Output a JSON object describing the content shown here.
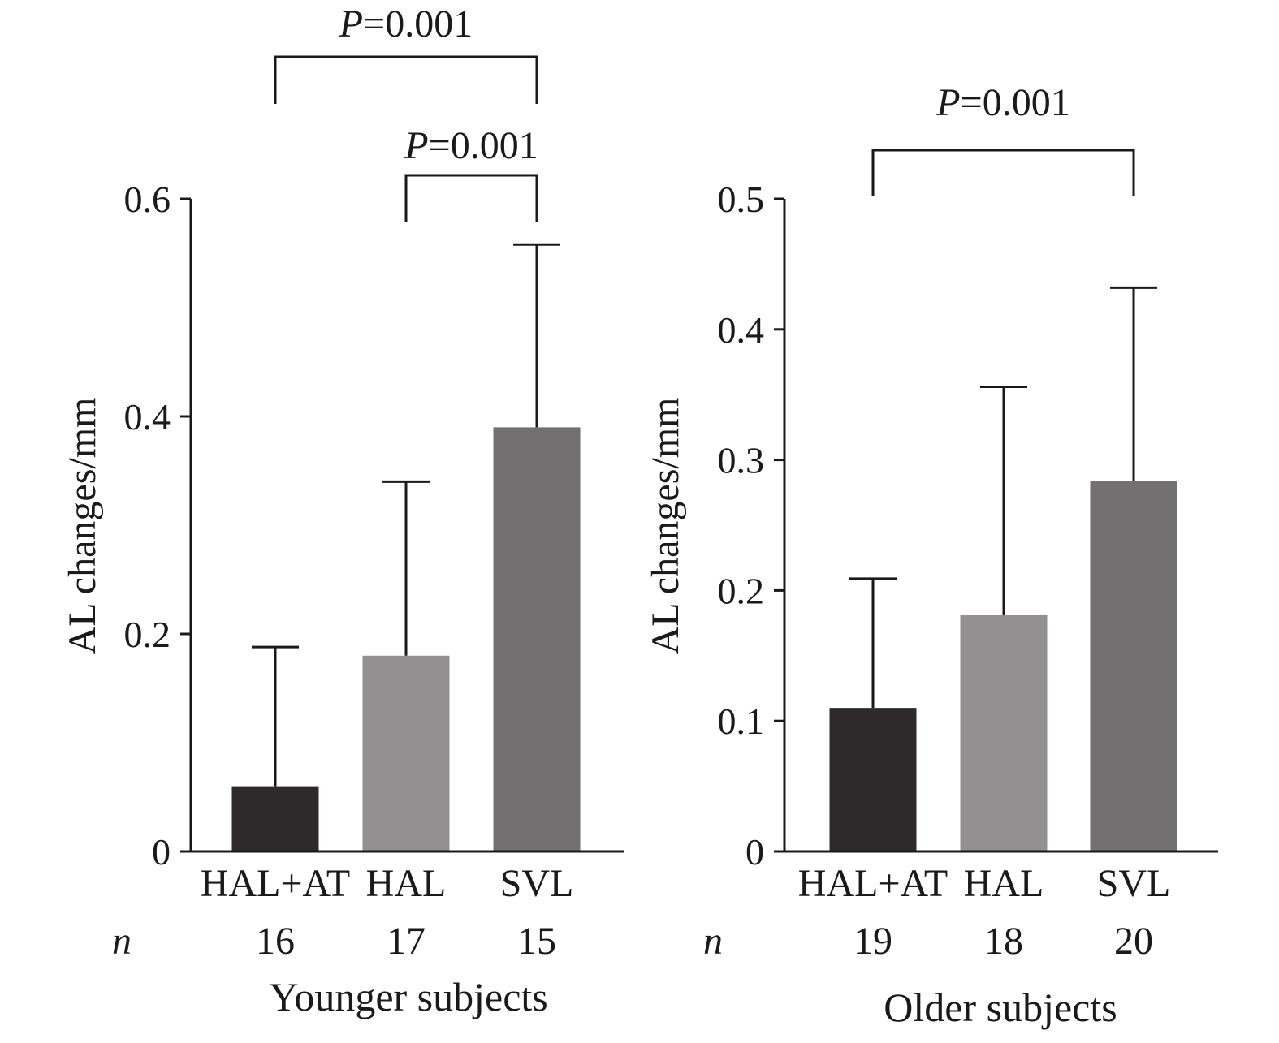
{
  "n_label": "n",
  "chart_data": [
    {
      "type": "bar",
      "title": "Younger subjects",
      "xlabel": "Younger subjects",
      "ylabel": "AL changes/mm",
      "ylim": [
        0,
        0.6
      ],
      "yticks": [
        0,
        0.2,
        0.4,
        0.6
      ],
      "ytick_labels": [
        "0",
        "0.2",
        "0.4",
        "0.6"
      ],
      "categories": [
        "HAL+AT",
        "HAL",
        "SVL"
      ],
      "n_values": [
        "16",
        "17",
        "15"
      ],
      "values": [
        0.06,
        0.18,
        0.39
      ],
      "errors": [
        0.128,
        0.16,
        0.168
      ],
      "colors": [
        "#2e2a2b",
        "#929091",
        "#727071"
      ],
      "significance": [
        {
          "from": 0,
          "to": 2,
          "label_prefix": "P",
          "label_value": "=0.001"
        },
        {
          "from": 1,
          "to": 2,
          "label_prefix": "P",
          "label_value": "=0.001"
        }
      ]
    },
    {
      "type": "bar",
      "title": "Older subjects",
      "xlabel": "Older subjects",
      "ylabel": "AL changes/mm",
      "ylim": [
        0,
        0.5
      ],
      "yticks": [
        0,
        0.1,
        0.2,
        0.3,
        0.4,
        0.5
      ],
      "ytick_labels": [
        "0",
        "0.1",
        "0.2",
        "0.3",
        "0.4",
        "0.5"
      ],
      "categories": [
        "HAL+AT",
        "HAL",
        "SVL"
      ],
      "n_values": [
        "19",
        "18",
        "20"
      ],
      "values": [
        0.11,
        0.181,
        0.284
      ],
      "errors": [
        0.099,
        0.175,
        0.148
      ],
      "colors": [
        "#2e2a2b",
        "#929091",
        "#727071"
      ],
      "significance": [
        {
          "from": 0,
          "to": 2,
          "label_prefix": "P",
          "label_value": "=0.001"
        }
      ]
    }
  ]
}
